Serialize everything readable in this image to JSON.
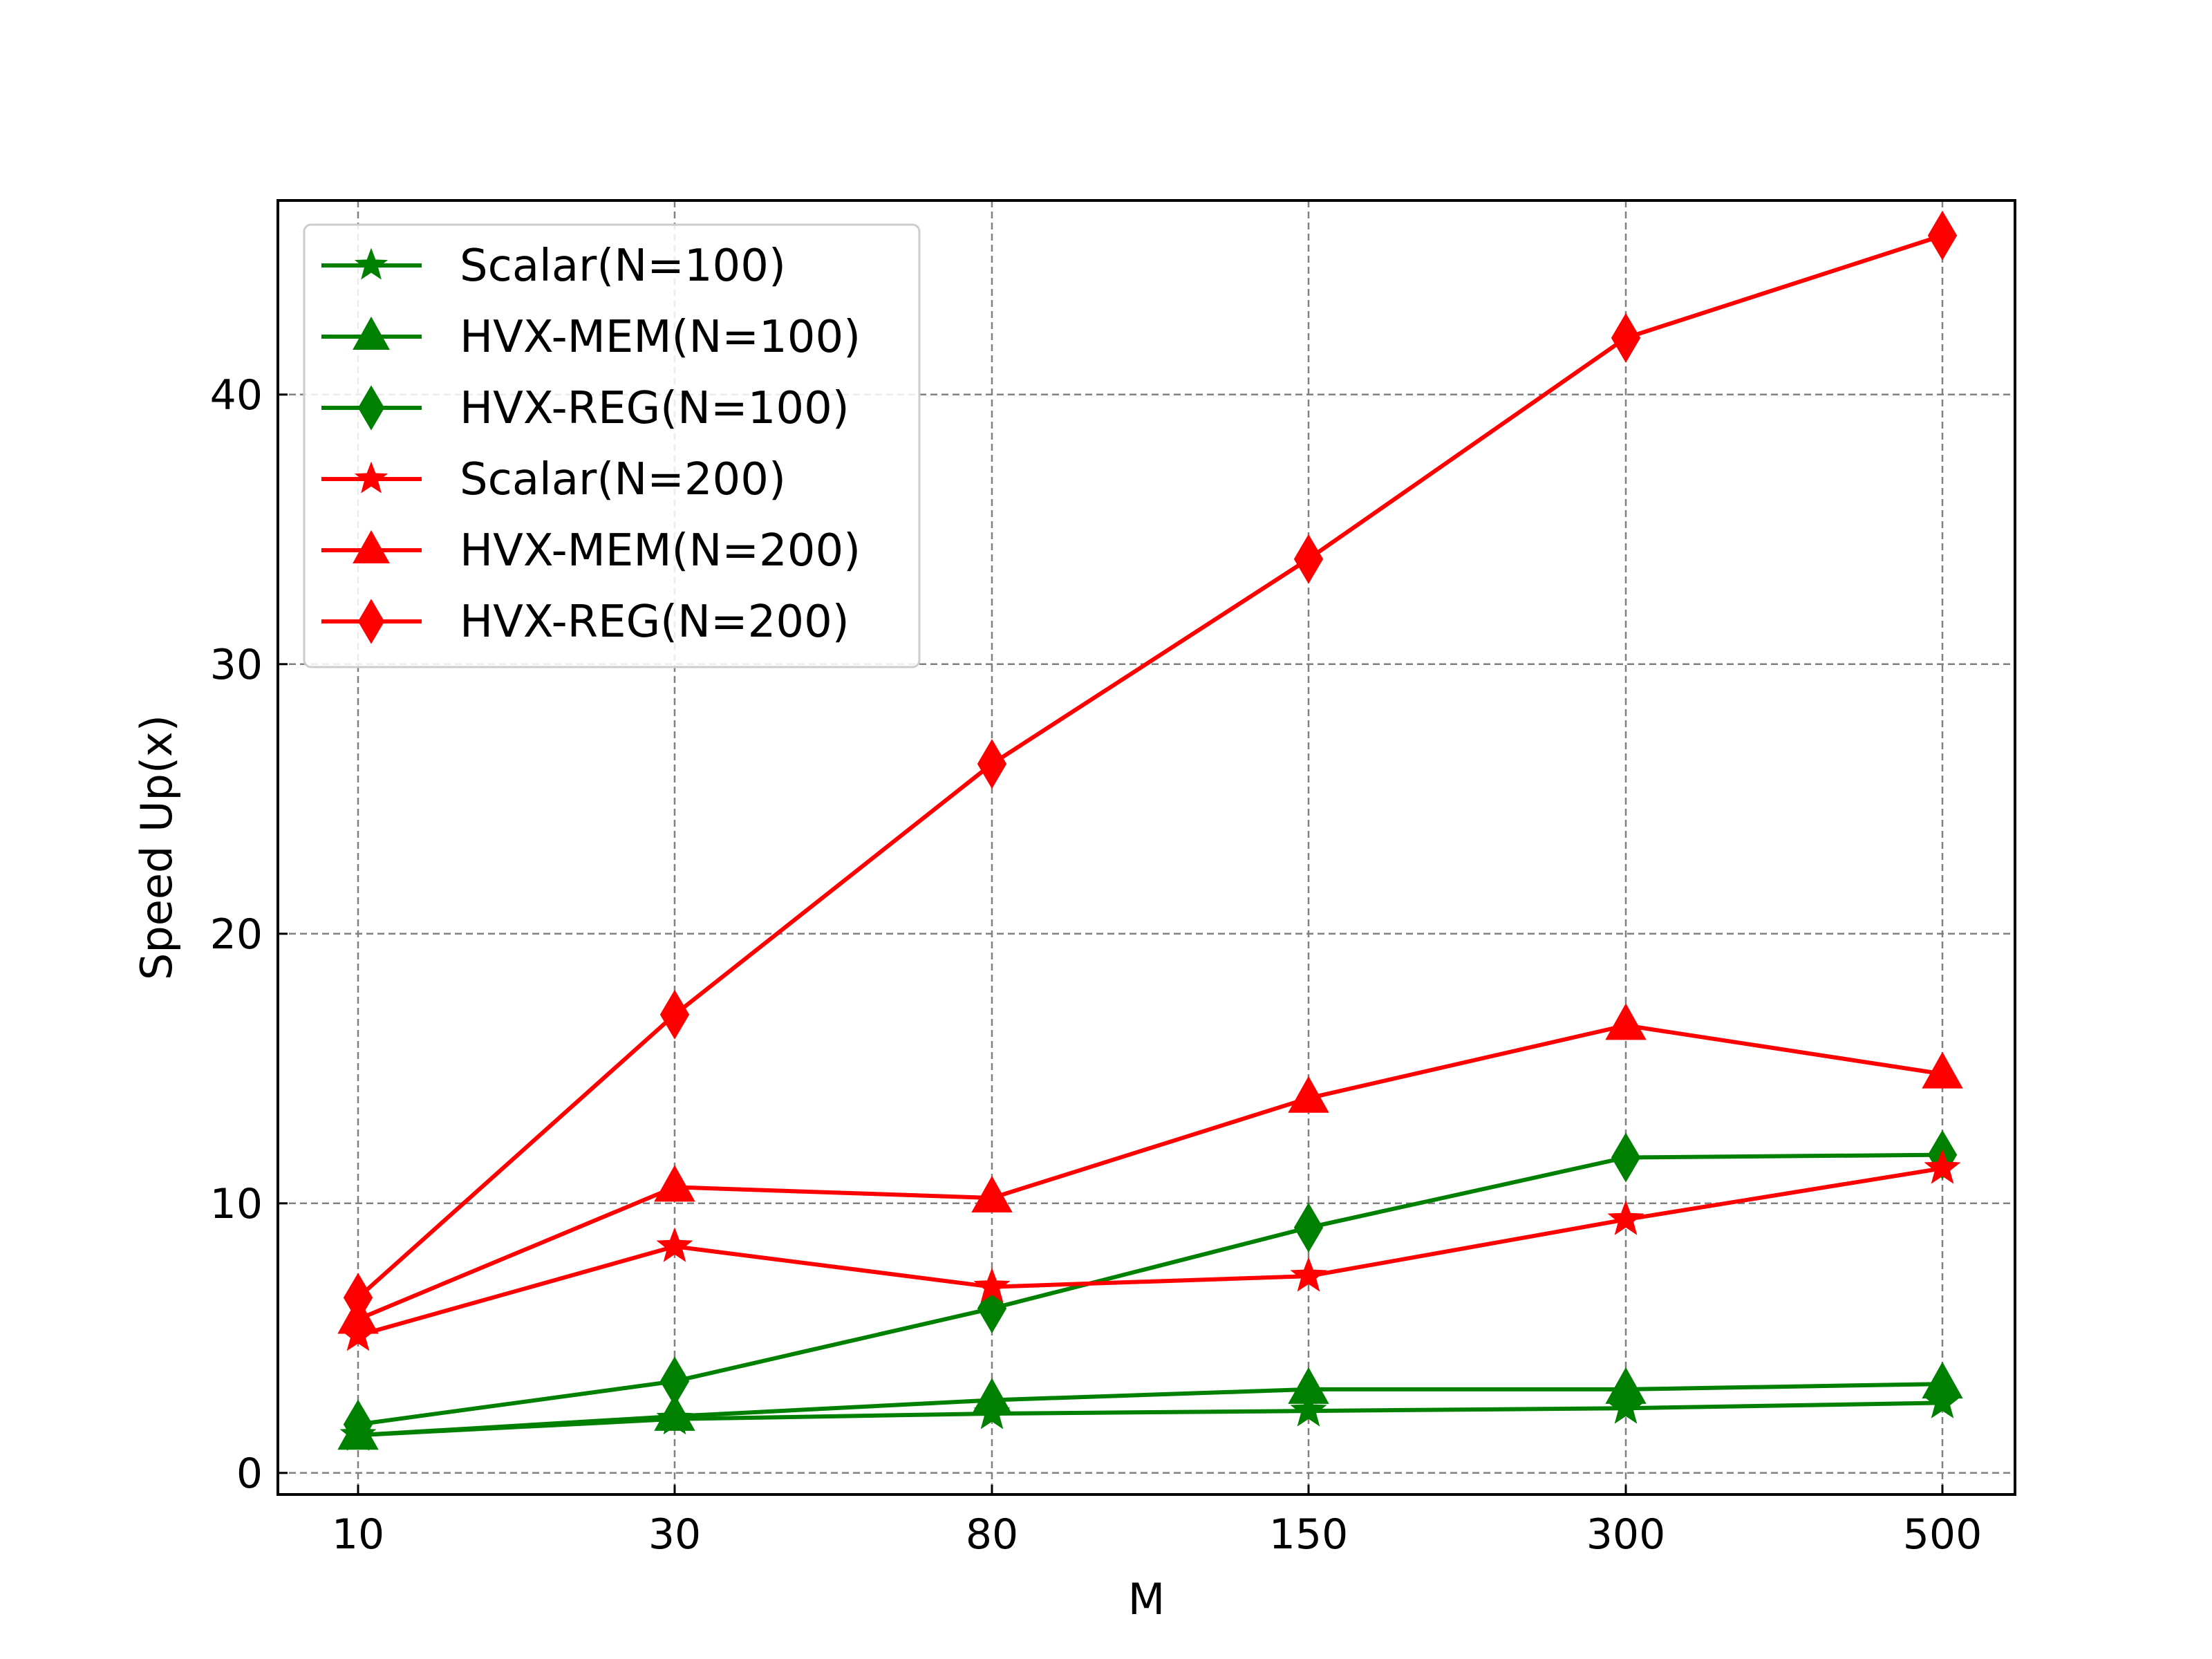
{
  "chart_data": {
    "type": "line",
    "xlabel": "M",
    "ylabel": "Speed Up(x)",
    "categories": [
      "10",
      "30",
      "80",
      "150",
      "300",
      "500"
    ],
    "ylim": [
      -0.8,
      47.2
    ],
    "yticks": [
      0,
      10,
      20,
      30,
      40
    ],
    "grid": true,
    "legend_position": "top-left",
    "series": [
      {
        "name": "Scalar(N=100)",
        "color": "#008000",
        "marker": "star",
        "values": [
          1.4,
          2.0,
          2.2,
          2.3,
          2.4,
          2.6
        ]
      },
      {
        "name": "HVX-MEM(N=100)",
        "color": "#008000",
        "marker": "triangle",
        "values": [
          1.4,
          2.1,
          2.7,
          3.1,
          3.1,
          3.3
        ]
      },
      {
        "name": "HVX-REG(N=100)",
        "color": "#008000",
        "marker": "diamond",
        "values": [
          1.8,
          3.4,
          6.1,
          9.1,
          11.7,
          11.8
        ]
      },
      {
        "name": "Scalar(N=200)",
        "color": "#ff0000",
        "marker": "star",
        "values": [
          5.1,
          8.4,
          6.9,
          7.3,
          9.4,
          11.3
        ]
      },
      {
        "name": "HVX-MEM(N=200)",
        "color": "#ff0000",
        "marker": "triangle",
        "values": [
          5.7,
          10.6,
          10.2,
          13.9,
          16.6,
          14.8
        ]
      },
      {
        "name": "HVX-REG(N=200)",
        "color": "#ff0000",
        "marker": "diamond",
        "values": [
          6.5,
          17.0,
          26.3,
          33.9,
          42.1,
          45.9
        ]
      }
    ]
  }
}
